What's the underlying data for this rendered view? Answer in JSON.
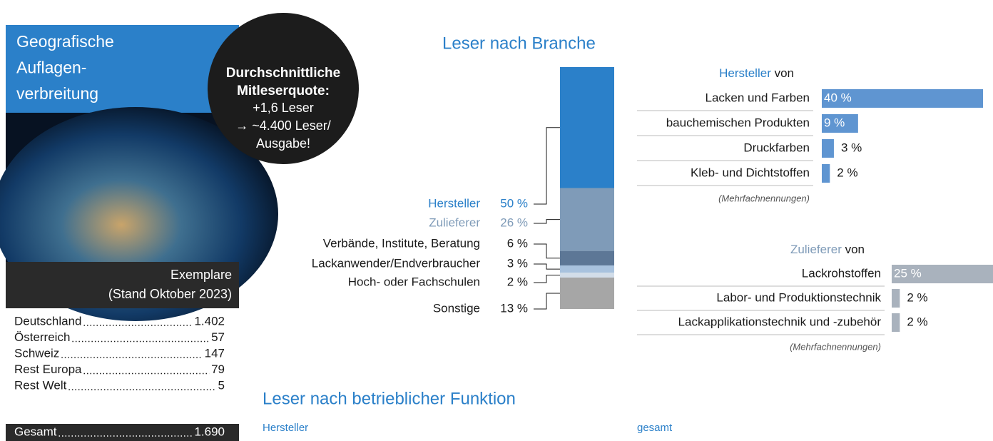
{
  "sidebar": {
    "title": [
      "Geografische",
      "Auflagen-",
      "verbreitung"
    ],
    "header": [
      "Exemplare",
      "(Stand Oktober 2023)"
    ],
    "table": {
      "rows": [
        [
          "Deutschland",
          "1.402"
        ],
        [
          "Österreich",
          "57"
        ],
        [
          "Schweiz",
          "147"
        ],
        [
          "Rest Europa",
          "79"
        ],
        [
          "Rest Welt",
          "5"
        ]
      ],
      "total": [
        "Gesamt",
        "1.690"
      ]
    }
  },
  "badge": {
    "title": [
      "Durchschnittliche",
      "Mitleserquote:"
    ],
    "lines": [
      "+1,6 Leser",
      "→ ~4.400 Leser/",
      "Ausgabe!"
    ]
  },
  "chart_data": [
    {
      "type": "bar",
      "stacked": true,
      "title": "Leser nach Branche",
      "categories": [
        "Hersteller",
        "Zulieferer",
        "Verbände, Institute, Beratung",
        "Lackanwender/Endverbraucher",
        "Hoch- oder Fachschulen",
        "Sonstige"
      ],
      "values": [
        50,
        26,
        6,
        3,
        2,
        13
      ],
      "value_labels": [
        "50 %",
        "26 %",
        "6 %",
        "3 %",
        "2 %",
        "13 %"
      ],
      "colors": [
        "#2b80c9",
        "#7f9bb8",
        "#5d7796",
        "#a8c2de",
        "#d2dde9",
        "#a6a6a6"
      ]
    },
    {
      "type": "bar",
      "orientation": "horizontal",
      "heading": "Hersteller",
      "heading_suffix": "von",
      "categories": [
        "Lacken und Farben",
        "bauchemischen Produkten",
        "Druckfarben",
        "Kleb- und Dichtstoffen"
      ],
      "values": [
        40,
        9,
        3,
        2
      ],
      "value_labels": [
        "40 %",
        "9 %",
        "3 %",
        "2 %"
      ],
      "color": "#5f95d1",
      "heading_color": "#2b80c9",
      "note": "(Mehrfachnennungen)"
    },
    {
      "type": "bar",
      "orientation": "horizontal",
      "heading": "Zulieferer",
      "heading_suffix": "von",
      "categories": [
        "Lackrohstoffen",
        "Labor- und Produktionstechnik",
        "Lackapplikationstechnik und -zubehör"
      ],
      "values": [
        25,
        2,
        2
      ],
      "value_labels": [
        "25 %",
        "2 %",
        "2 %"
      ],
      "color": "#a9b2bd",
      "heading_color": "#7f9bb8",
      "note": "(Mehrfachnennungen)"
    }
  ],
  "section": {
    "title": "Leser nach betrieblicher Funktion",
    "left": "Hersteller",
    "right": "gesamt"
  }
}
